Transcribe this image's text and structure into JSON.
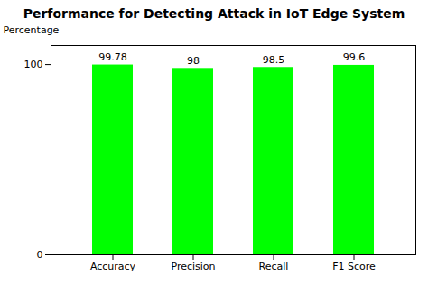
{
  "chart_data": {
    "type": "bar",
    "title": "Performance for Detecting Attack in IoT Edge System",
    "categories": [
      "Accuracy",
      "Precision",
      "Recall",
      "F1 Score"
    ],
    "values": [
      99.78,
      98,
      98.5,
      99.6
    ],
    "color": "#00FF00",
    "ylabel": "Percentage",
    "ylim": [
      0,
      110
    ],
    "yticks": [
      0,
      100
    ],
    "data_labels": true,
    "grid": false
  }
}
